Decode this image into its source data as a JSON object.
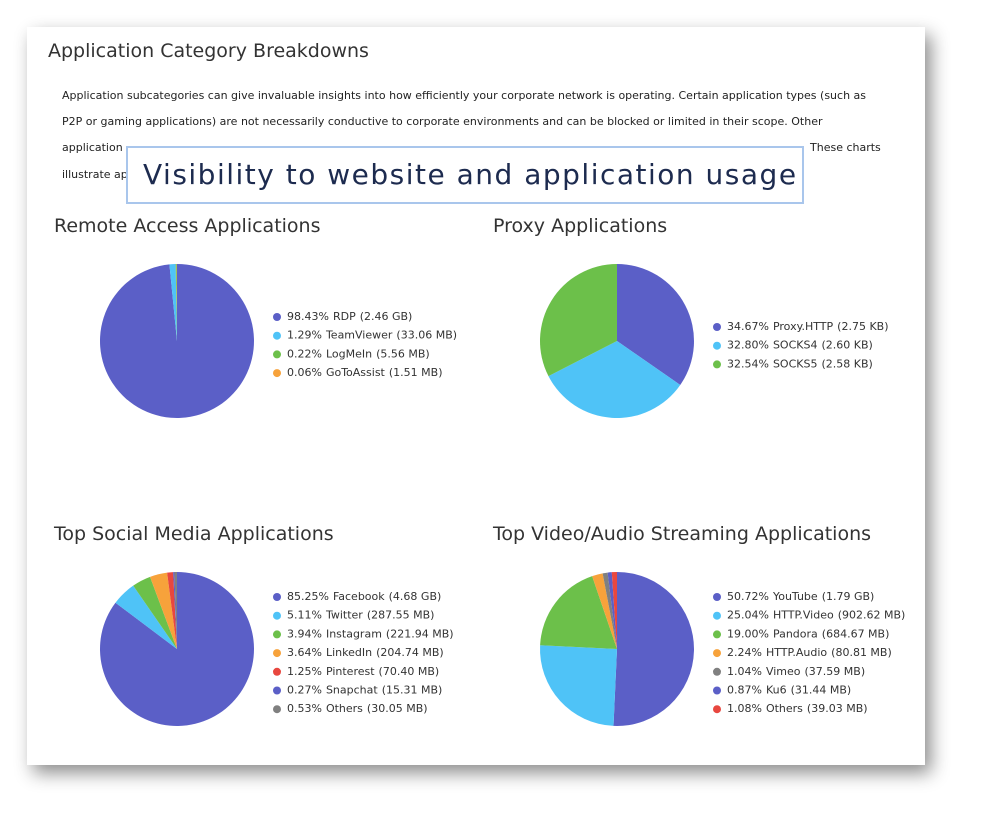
{
  "header": {
    "title": "Application Category Breakdowns"
  },
  "paragraph": {
    "lines": [
      "Application subcategories can give invaluable insights into how efficiently your corporate network is operating.  Certain application types (such as",
      "P2P or gaming applications) are not necessarily conductive to corporate environments and can be blocked or limited in their scope.  Other"
    ],
    "fragments": [
      "application",
      "These charts",
      "illustrate ap"
    ]
  },
  "callout": "Visibility to website and application usage",
  "chart_data": [
    {
      "type": "pie",
      "title": "Remote Access Applications",
      "categories": [
        "RDP",
        "TeamViewer",
        "LogMeIn",
        "GoToAssist"
      ],
      "values": [
        98.43,
        1.29,
        0.22,
        0.06
      ],
      "value_labels": [
        "98.43%",
        "1.29%",
        "0.22%",
        "0.06%"
      ],
      "details": [
        "(2.46 GB)",
        "(33.06 MB)",
        "(5.56 MB)",
        "(1.51 MB)"
      ],
      "colors": [
        "#5b5fc7",
        "#4fc3f7",
        "#6cc04a",
        "#f7a23b"
      ]
    },
    {
      "type": "pie",
      "title": "Proxy Applications",
      "categories": [
        "Proxy.HTTP",
        "SOCKS4",
        "SOCKS5"
      ],
      "values": [
        34.67,
        32.8,
        32.54
      ],
      "value_labels": [
        "34.67%",
        "32.80%",
        "32.54%"
      ],
      "details": [
        "(2.75 KB)",
        "(2.60 KB)",
        "(2.58 KB)"
      ],
      "colors": [
        "#5b5fc7",
        "#4fc3f7",
        "#6cc04a"
      ]
    },
    {
      "type": "pie",
      "title": "Top Social Media Applications",
      "categories": [
        "Facebook",
        "Twitter",
        "Instagram",
        "LinkedIn",
        "Pinterest",
        "Snapchat",
        "Others"
      ],
      "values": [
        85.25,
        5.11,
        3.94,
        3.64,
        1.25,
        0.27,
        0.53
      ],
      "value_labels": [
        "85.25%",
        "5.11%",
        "3.94%",
        "3.64%",
        "1.25%",
        "0.27%",
        "0.53%"
      ],
      "details": [
        "(4.68 GB)",
        "(287.55 MB)",
        "(221.94 MB)",
        "(204.74 MB)",
        "(70.40 MB)",
        "(15.31 MB)",
        "(30.05 MB)"
      ],
      "colors": [
        "#5b5fc7",
        "#4fc3f7",
        "#6cc04a",
        "#f7a23b",
        "#e8473f",
        "#5b5fc7",
        "#808080"
      ]
    },
    {
      "type": "pie",
      "title": "Top Video/Audio Streaming Applications",
      "categories": [
        "YouTube",
        "HTTP.Video",
        "Pandora",
        "HTTP.Audio",
        "Vimeo",
        "Ku6",
        "Others"
      ],
      "values": [
        50.72,
        25.04,
        19.0,
        2.24,
        1.04,
        0.87,
        1.08
      ],
      "value_labels": [
        "50.72%",
        "25.04%",
        "19.00%",
        "2.24%",
        "1.04%",
        "0.87%",
        "1.08%"
      ],
      "details": [
        "(1.79 GB)",
        "(902.62 MB)",
        "(684.67 MB)",
        "(80.81 MB)",
        "(37.59 MB)",
        "(31.44 MB)",
        "(39.03 MB)"
      ],
      "colors": [
        "#5b5fc7",
        "#4fc3f7",
        "#6cc04a",
        "#f7a23b",
        "#808080",
        "#5b5fc7",
        "#e8473f"
      ]
    }
  ]
}
